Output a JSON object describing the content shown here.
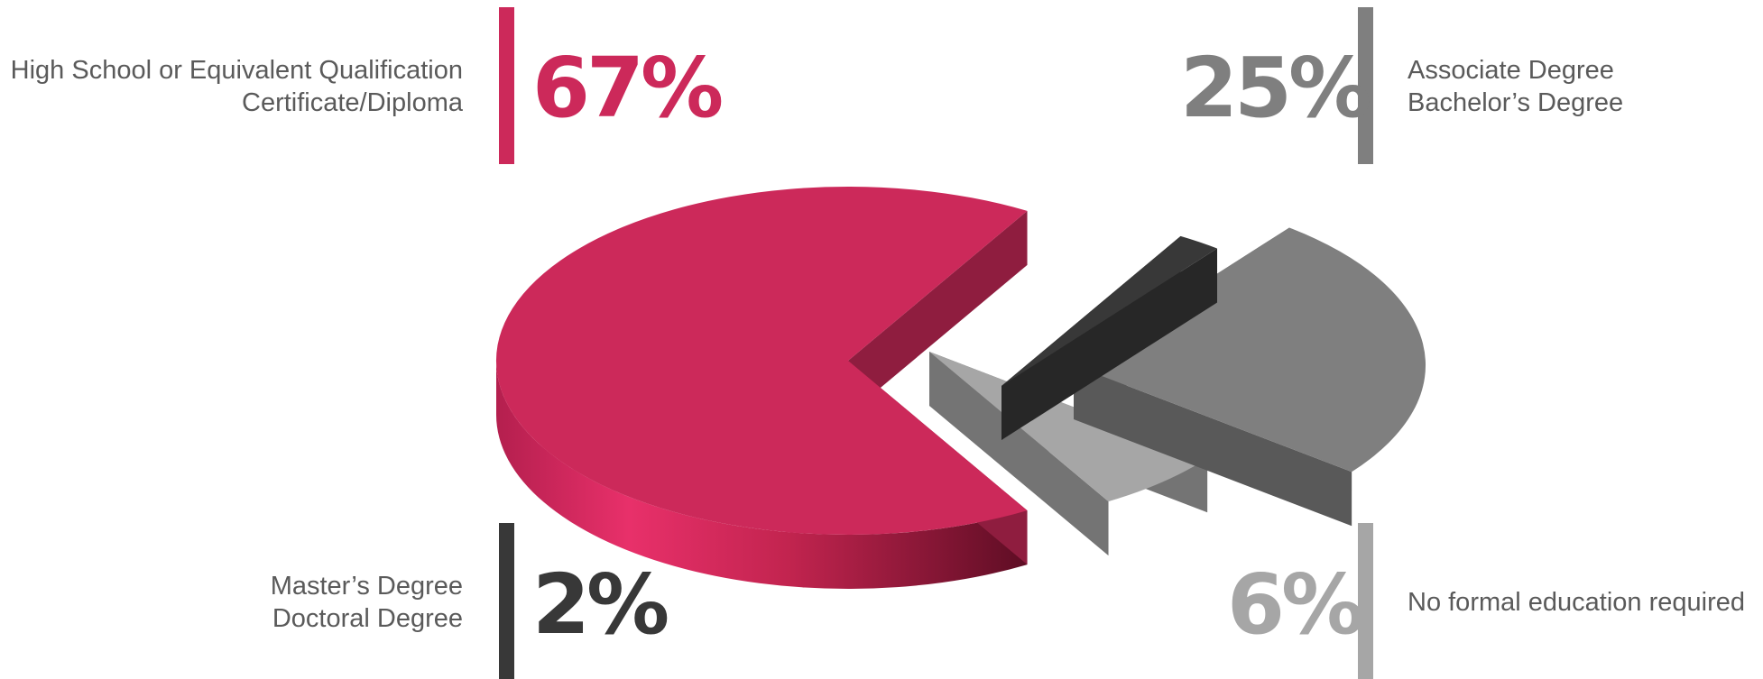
{
  "chart_data": {
    "type": "pie",
    "style": "3d-exploded",
    "slices": [
      {
        "label_lines": [
          "High School or Equivalent Qualification",
          "Certificate/Diploma"
        ],
        "value": 67,
        "display": "67%",
        "color": "#cc295a"
      },
      {
        "label_lines": [
          "Associate Degree",
          "Bachelor’s Degree"
        ],
        "value": 25,
        "display": "25%",
        "color": "#7f7f7f"
      },
      {
        "label_lines": [
          "Master’s Degree",
          "Doctoral Degree"
        ],
        "value": 2,
        "display": "2%",
        "color": "#383838"
      },
      {
        "label_lines": [
          "No formal education required"
        ],
        "value": 6,
        "display": "6%",
        "color": "#a6a6a6"
      }
    ]
  }
}
